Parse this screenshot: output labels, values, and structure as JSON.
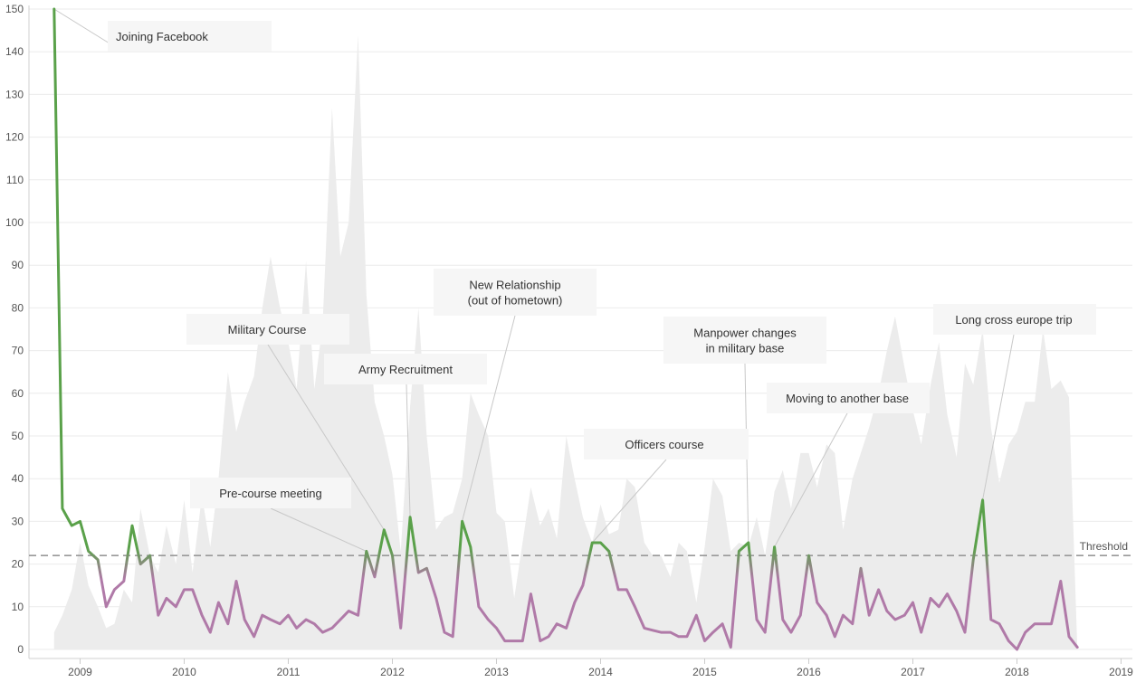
{
  "chart_data": {
    "type": "line",
    "xlim": [
      2008.5,
      2019.1
    ],
    "ylim": [
      0,
      150
    ],
    "y_ticks": [
      0,
      10,
      20,
      30,
      40,
      50,
      60,
      70,
      80,
      90,
      100,
      110,
      120,
      130,
      140,
      150
    ],
    "x_ticks": [
      2009,
      2010,
      2011,
      2012,
      2013,
      2014,
      2015,
      2016,
      2017,
      2018,
      2019
    ],
    "grid": true,
    "colors": {
      "above_threshold": "#5aa14a",
      "below_threshold": "#b07aa8",
      "background_area": "#ececec",
      "threshold_line": "#999999"
    },
    "threshold": {
      "value": 22,
      "label": "Threshold"
    },
    "series": [
      {
        "values": [
          [
            2008.75,
            150
          ],
          [
            2008.83,
            33
          ],
          [
            2008.92,
            29
          ],
          [
            2009.0,
            30
          ],
          [
            2009.08,
            23
          ],
          [
            2009.17,
            21
          ],
          [
            2009.25,
            10
          ],
          [
            2009.33,
            14
          ],
          [
            2009.42,
            16
          ],
          [
            2009.5,
            29
          ],
          [
            2009.58,
            20
          ],
          [
            2009.67,
            22
          ],
          [
            2009.75,
            8
          ],
          [
            2009.83,
            12
          ],
          [
            2009.92,
            10
          ],
          [
            2010.0,
            14
          ],
          [
            2010.08,
            14
          ],
          [
            2010.17,
            8
          ],
          [
            2010.25,
            4
          ],
          [
            2010.33,
            11
          ],
          [
            2010.42,
            6
          ],
          [
            2010.5,
            16
          ],
          [
            2010.58,
            7
          ],
          [
            2010.67,
            3
          ],
          [
            2010.75,
            8
          ],
          [
            2010.83,
            7
          ],
          [
            2010.92,
            6
          ],
          [
            2011.0,
            8
          ],
          [
            2011.08,
            5
          ],
          [
            2011.17,
            7
          ],
          [
            2011.25,
            6
          ],
          [
            2011.33,
            4
          ],
          [
            2011.42,
            5
          ],
          [
            2011.5,
            7
          ],
          [
            2011.58,
            9
          ],
          [
            2011.67,
            8
          ],
          [
            2011.75,
            23
          ],
          [
            2011.83,
            17
          ],
          [
            2011.92,
            28
          ],
          [
            2012.0,
            22
          ],
          [
            2012.08,
            5
          ],
          [
            2012.17,
            31
          ],
          [
            2012.25,
            18
          ],
          [
            2012.33,
            19
          ],
          [
            2012.42,
            12
          ],
          [
            2012.5,
            4
          ],
          [
            2012.58,
            3
          ],
          [
            2012.67,
            30
          ],
          [
            2012.75,
            24
          ],
          [
            2012.83,
            10
          ],
          [
            2012.92,
            7
          ],
          [
            2013.0,
            5
          ],
          [
            2013.08,
            2
          ],
          [
            2013.17,
            2
          ],
          [
            2013.25,
            2
          ],
          [
            2013.33,
            13
          ],
          [
            2013.42,
            2
          ],
          [
            2013.5,
            3
          ],
          [
            2013.58,
            6
          ],
          [
            2013.67,
            5
          ],
          [
            2013.75,
            11
          ],
          [
            2013.83,
            15
          ],
          [
            2013.92,
            25
          ],
          [
            2014.0,
            25
          ],
          [
            2014.08,
            23
          ],
          [
            2014.17,
            14
          ],
          [
            2014.25,
            14
          ],
          [
            2014.33,
            10
          ],
          [
            2014.42,
            5
          ],
          [
            2014.5,
            4.5
          ],
          [
            2014.58,
            4
          ],
          [
            2014.67,
            4
          ],
          [
            2014.75,
            3
          ],
          [
            2014.83,
            3
          ],
          [
            2014.92,
            8
          ],
          [
            2015.0,
            2
          ],
          [
            2015.08,
            4
          ],
          [
            2015.17,
            6
          ],
          [
            2015.25,
            0.5
          ],
          [
            2015.33,
            23
          ],
          [
            2015.42,
            25
          ],
          [
            2015.5,
            7
          ],
          [
            2015.58,
            4
          ],
          [
            2015.67,
            24
          ],
          [
            2015.75,
            7
          ],
          [
            2015.83,
            4
          ],
          [
            2015.92,
            8
          ],
          [
            2016.0,
            22
          ],
          [
            2016.08,
            11
          ],
          [
            2016.17,
            8
          ],
          [
            2016.25,
            3
          ],
          [
            2016.33,
            8
          ],
          [
            2016.42,
            6
          ],
          [
            2016.5,
            19
          ],
          [
            2016.58,
            8
          ],
          [
            2016.67,
            14
          ],
          [
            2016.75,
            9
          ],
          [
            2016.83,
            7
          ],
          [
            2016.92,
            8
          ],
          [
            2017.0,
            11
          ],
          [
            2017.08,
            4
          ],
          [
            2017.17,
            12
          ],
          [
            2017.25,
            10
          ],
          [
            2017.33,
            13
          ],
          [
            2017.42,
            9
          ],
          [
            2017.5,
            4
          ],
          [
            2017.58,
            21
          ],
          [
            2017.67,
            35
          ],
          [
            2017.75,
            7
          ],
          [
            2017.83,
            6
          ],
          [
            2017.92,
            2
          ],
          [
            2018.0,
            0
          ],
          [
            2018.08,
            4
          ],
          [
            2018.17,
            6
          ],
          [
            2018.25,
            6
          ],
          [
            2018.33,
            6
          ],
          [
            2018.42,
            16
          ],
          [
            2018.5,
            3
          ],
          [
            2018.58,
            0.5
          ]
        ]
      }
    ],
    "background_area": [
      [
        2008.75,
        4
      ],
      [
        2008.83,
        8
      ],
      [
        2008.92,
        14
      ],
      [
        2009.0,
        25
      ],
      [
        2009.08,
        15
      ],
      [
        2009.17,
        10
      ],
      [
        2009.25,
        5
      ],
      [
        2009.33,
        6
      ],
      [
        2009.42,
        14
      ],
      [
        2009.5,
        11
      ],
      [
        2009.58,
        33
      ],
      [
        2009.67,
        22
      ],
      [
        2009.75,
        18
      ],
      [
        2009.83,
        29
      ],
      [
        2009.92,
        20
      ],
      [
        2010.0,
        35
      ],
      [
        2010.08,
        18
      ],
      [
        2010.17,
        36
      ],
      [
        2010.25,
        24
      ],
      [
        2010.33,
        40
      ],
      [
        2010.42,
        65
      ],
      [
        2010.5,
        51
      ],
      [
        2010.58,
        58
      ],
      [
        2010.67,
        64
      ],
      [
        2010.75,
        80
      ],
      [
        2010.83,
        92
      ],
      [
        2010.92,
        80
      ],
      [
        2011.0,
        72
      ],
      [
        2011.08,
        61
      ],
      [
        2011.17,
        91
      ],
      [
        2011.25,
        61
      ],
      [
        2011.33,
        76
      ],
      [
        2011.42,
        127
      ],
      [
        2011.5,
        92
      ],
      [
        2011.58,
        100
      ],
      [
        2011.67,
        144
      ],
      [
        2011.75,
        83
      ],
      [
        2011.83,
        58
      ],
      [
        2011.92,
        50
      ],
      [
        2012.0,
        41
      ],
      [
        2012.08,
        23
      ],
      [
        2012.17,
        57
      ],
      [
        2012.25,
        80
      ],
      [
        2012.33,
        50
      ],
      [
        2012.42,
        28
      ],
      [
        2012.5,
        31
      ],
      [
        2012.58,
        32
      ],
      [
        2012.67,
        40
      ],
      [
        2012.75,
        60
      ],
      [
        2012.83,
        55
      ],
      [
        2012.92,
        50
      ],
      [
        2013.0,
        32
      ],
      [
        2013.08,
        30
      ],
      [
        2013.17,
        12
      ],
      [
        2013.25,
        25
      ],
      [
        2013.33,
        38
      ],
      [
        2013.42,
        29
      ],
      [
        2013.5,
        33
      ],
      [
        2013.58,
        26
      ],
      [
        2013.67,
        50
      ],
      [
        2013.75,
        40
      ],
      [
        2013.83,
        31
      ],
      [
        2013.92,
        25
      ],
      [
        2014.0,
        34
      ],
      [
        2014.08,
        27
      ],
      [
        2014.17,
        28
      ],
      [
        2014.25,
        40
      ],
      [
        2014.33,
        38
      ],
      [
        2014.42,
        25
      ],
      [
        2014.5,
        22
      ],
      [
        2014.58,
        22
      ],
      [
        2014.67,
        17
      ],
      [
        2014.75,
        25
      ],
      [
        2014.83,
        23
      ],
      [
        2014.92,
        11
      ],
      [
        2015.0,
        24
      ],
      [
        2015.08,
        40
      ],
      [
        2015.17,
        36
      ],
      [
        2015.25,
        23
      ],
      [
        2015.33,
        25
      ],
      [
        2015.42,
        24
      ],
      [
        2015.5,
        31
      ],
      [
        2015.58,
        22
      ],
      [
        2015.67,
        37
      ],
      [
        2015.75,
        42
      ],
      [
        2015.83,
        33
      ],
      [
        2015.92,
        46
      ],
      [
        2016.0,
        46
      ],
      [
        2016.08,
        38
      ],
      [
        2016.17,
        48
      ],
      [
        2016.25,
        46
      ],
      [
        2016.33,
        28
      ],
      [
        2016.42,
        40
      ],
      [
        2016.5,
        46
      ],
      [
        2016.58,
        52
      ],
      [
        2016.67,
        60
      ],
      [
        2016.75,
        70
      ],
      [
        2016.83,
        78
      ],
      [
        2016.92,
        66
      ],
      [
        2017.0,
        56
      ],
      [
        2017.08,
        48
      ],
      [
        2017.17,
        62
      ],
      [
        2017.25,
        72
      ],
      [
        2017.33,
        55
      ],
      [
        2017.42,
        45
      ],
      [
        2017.5,
        67
      ],
      [
        2017.58,
        62
      ],
      [
        2017.67,
        75
      ],
      [
        2017.75,
        52
      ],
      [
        2017.83,
        39
      ],
      [
        2017.92,
        48
      ],
      [
        2018.0,
        51
      ],
      [
        2018.08,
        58
      ],
      [
        2018.17,
        58
      ],
      [
        2018.25,
        75
      ],
      [
        2018.33,
        61
      ],
      [
        2018.42,
        63
      ],
      [
        2018.5,
        59
      ],
      [
        2018.58,
        0
      ]
    ],
    "annotations": [
      {
        "text": "Joining Facebook",
        "x": 2008.75,
        "y": 150
      },
      {
        "text": "Pre-course meeting",
        "x": 2011.75,
        "y": 23
      },
      {
        "text": "Military Course",
        "x": 2011.92,
        "y": 28
      },
      {
        "text": "Army Recruitment",
        "x": 2012.17,
        "y": 31
      },
      {
        "text": "New Relationship\n(out of hometown)",
        "x": 2012.67,
        "y": 30
      },
      {
        "text": "Officers course",
        "x": 2013.92,
        "y": 25
      },
      {
        "text": "Manpower changes\nin military base",
        "x": 2015.42,
        "y": 25
      },
      {
        "text": "Moving to another base",
        "x": 2015.67,
        "y": 24
      },
      {
        "text": "Long cross europe trip",
        "x": 2017.67,
        "y": 35
      }
    ]
  }
}
